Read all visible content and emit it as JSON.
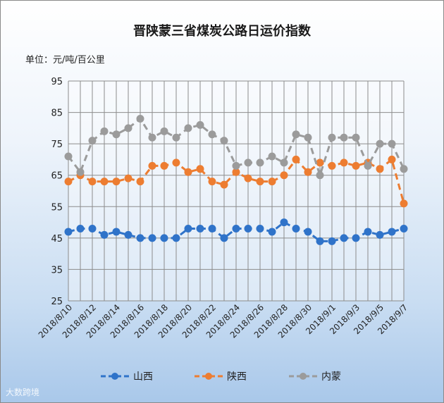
{
  "title": "晋陕蒙三省煤炭公路日运价指数",
  "unit_label": "单位：元/吨/百公里",
  "watermark": "大数跨境",
  "chart_data": {
    "type": "line",
    "title": "晋陕蒙三省煤炭公路日运价指数",
    "ylabel": "单位：元/吨/百公里",
    "ylim": [
      25,
      95
    ],
    "yticks": [
      25,
      35,
      45,
      55,
      65,
      75,
      85,
      95
    ],
    "grid": true,
    "legend_position": "bottom",
    "x": [
      "2018/8/10",
      "2018/8/11",
      "2018/8/12",
      "2018/8/13",
      "2018/8/14",
      "2018/8/15",
      "2018/8/16",
      "2018/8/17",
      "2018/8/18",
      "2018/8/19",
      "2018/8/20",
      "2018/8/21",
      "2018/8/22",
      "2018/8/23",
      "2018/8/24",
      "2018/8/25",
      "2018/8/26",
      "2018/8/27",
      "2018/8/28",
      "2018/8/29",
      "2018/8/30",
      "2018/8/31",
      "2018/9/1",
      "2018/9/2",
      "2018/9/3",
      "2018/9/4",
      "2018/9/5",
      "2018/9/6",
      "2018/9/7"
    ],
    "xtick_labels": [
      "2018/8/10",
      "2018/8/12",
      "2018/8/14",
      "2018/8/16",
      "2018/8/18",
      "2018/8/20",
      "2018/8/22",
      "2018/8/24",
      "2018/8/26",
      "2018/8/28",
      "2018/8/30",
      "2018/9/1",
      "2018/9/3",
      "2018/9/5",
      "2018/9/7"
    ],
    "series": [
      {
        "name": "山西",
        "color": "#2f73c9",
        "values": [
          47,
          48,
          48,
          46,
          47,
          46,
          45,
          45,
          45,
          45,
          48,
          48,
          48,
          45,
          48,
          48,
          48,
          47,
          50,
          48,
          47,
          44,
          44,
          45,
          45,
          47,
          46,
          47,
          48
        ]
      },
      {
        "name": "陕西",
        "color": "#ed7d31",
        "values": [
          63,
          65,
          63,
          63,
          63,
          64,
          63,
          68,
          68,
          69,
          66,
          67,
          63,
          62,
          66,
          64,
          63,
          63,
          65,
          70,
          66,
          69,
          68,
          69,
          68,
          69,
          67,
          70,
          56
        ]
      },
      {
        "name": "内蒙",
        "color": "#9b9b9b",
        "values": [
          71,
          66,
          76,
          79,
          78,
          80,
          83,
          77,
          79,
          77,
          80,
          81,
          78,
          76,
          68,
          69,
          69,
          71,
          69,
          78,
          77,
          65,
          77,
          77,
          77,
          68,
          75,
          75,
          67
        ]
      }
    ]
  }
}
